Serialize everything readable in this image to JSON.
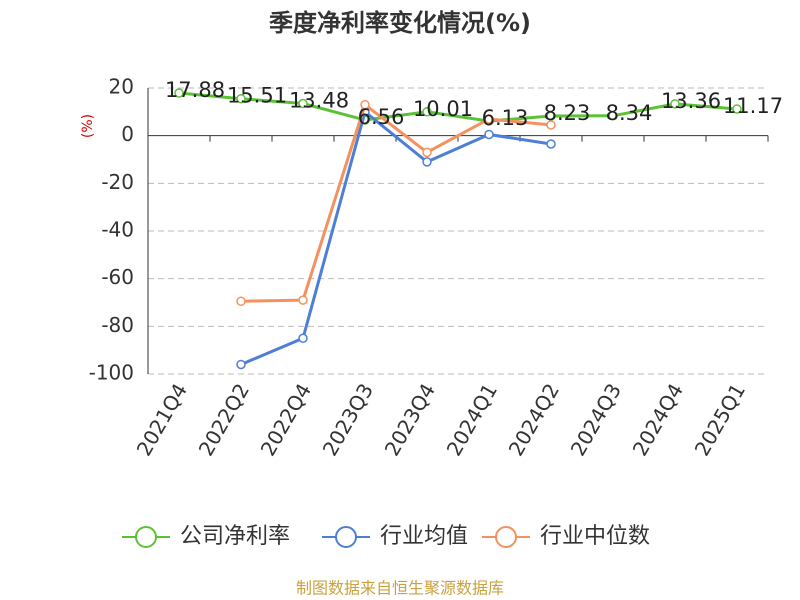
{
  "chart_data": {
    "type": "line",
    "title": "季度净利率变化情况(%)",
    "y_label": "(%)",
    "source": "制图数据来自恒生聚源数据库",
    "categories": [
      "2021Q4",
      "2022Q2",
      "2022Q4",
      "2023Q3",
      "2023Q4",
      "2024Q1",
      "2024Q2",
      "2024Q3",
      "2024Q4",
      "2025Q1"
    ],
    "series": [
      {
        "name": "公司净利率",
        "color": "#5bc236",
        "values": [
          17.88,
          15.51,
          13.48,
          6.56,
          10.01,
          6.13,
          8.23,
          8.34,
          13.36,
          11.17
        ],
        "show_labels": true
      },
      {
        "name": "行业均值",
        "color": "#4d7fd8",
        "values": [
          null,
          -96,
          -85,
          10,
          -11,
          0.5,
          -3.5,
          null,
          null,
          null
        ]
      },
      {
        "name": "行业中位数",
        "color": "#f5915f",
        "values": [
          null,
          -69.5,
          -69,
          13,
          -7,
          7,
          4.5,
          null,
          null,
          null
        ]
      }
    ],
    "ylim": [
      -100,
      20
    ],
    "yticks": [
      -100,
      -80,
      -60,
      -40,
      -20,
      0,
      20
    ],
    "grid": true,
    "legend": "bottom"
  }
}
